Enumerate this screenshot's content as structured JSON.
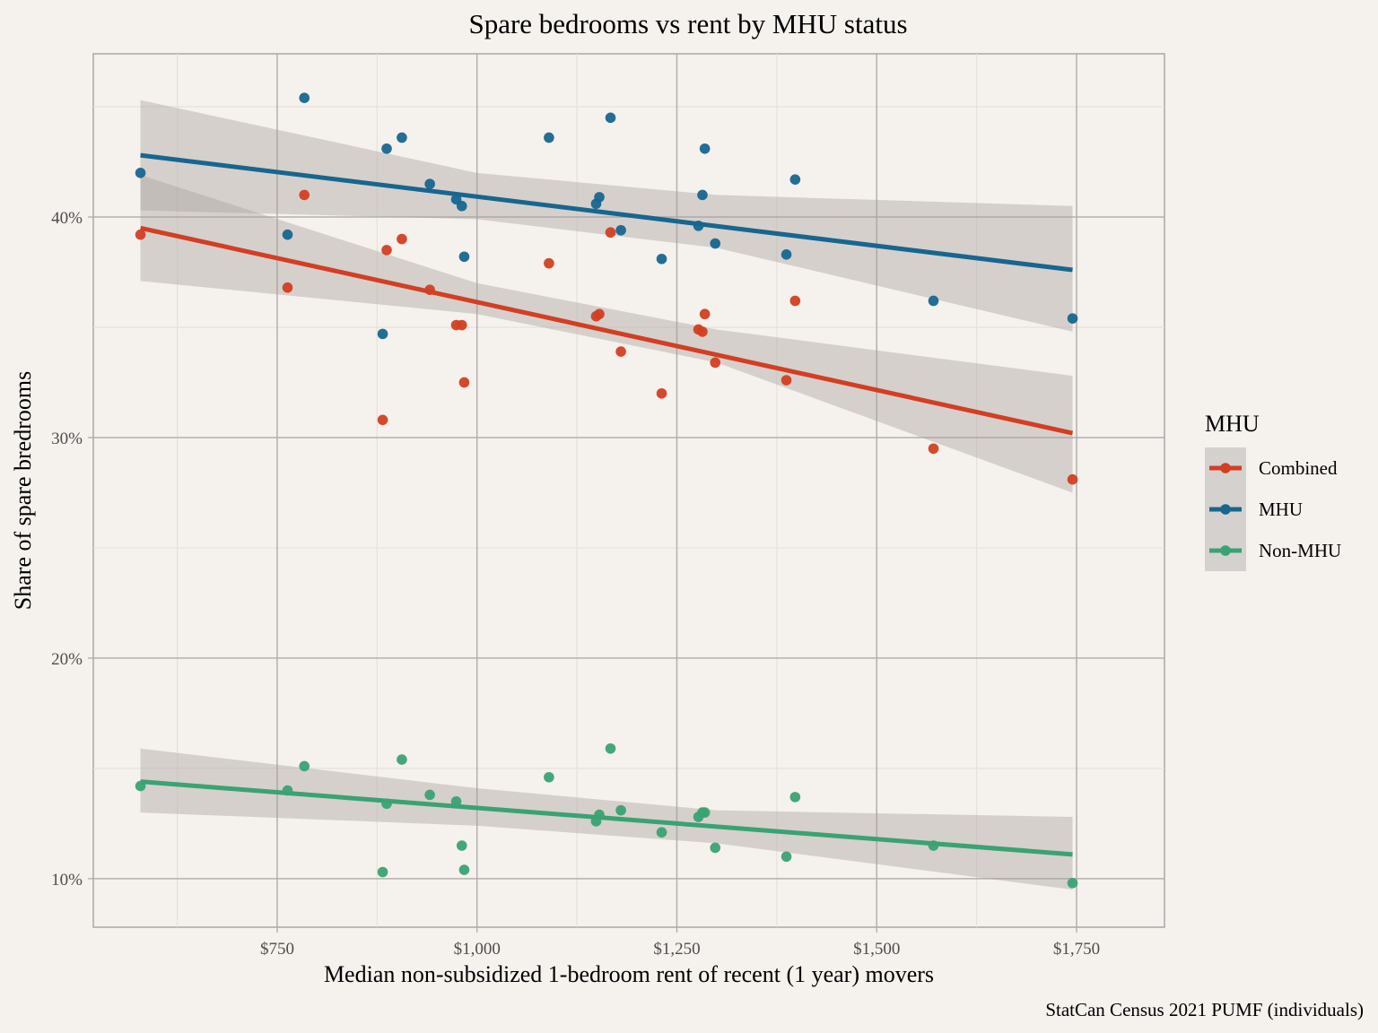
{
  "chart_data": {
    "type": "scatter",
    "title": "Spare bedrooms vs rent by MHU status",
    "xlabel": "Median non-subsidized 1-bedroom rent of recent (1 year) movers",
    "ylabel": "Share of spare bredrooms",
    "caption": "StatCan Census 2021 PUMF (individuals)",
    "xlim": [
      520,
      1860
    ],
    "ylim": [
      7.8,
      47.4
    ],
    "x_ticks": [
      {
        "value": 750,
        "label": "$750"
      },
      {
        "value": 1000,
        "label": "$1,000"
      },
      {
        "value": 1250,
        "label": "$1,250"
      },
      {
        "value": 1500,
        "label": "$1,500"
      },
      {
        "value": 1750,
        "label": "$1,750"
      }
    ],
    "y_ticks": [
      {
        "value": 10,
        "label": "10%"
      },
      {
        "value": 20,
        "label": "20%"
      },
      {
        "value": 30,
        "label": "30%"
      },
      {
        "value": 40,
        "label": "40%"
      }
    ],
    "x_minor": [
      625,
      875,
      1125,
      1375,
      1625
    ],
    "y_minor": [
      15,
      25,
      35,
      45
    ],
    "grid": true,
    "legend": {
      "title": "MHU",
      "position": "right"
    },
    "x": [
      579,
      763,
      784,
      882,
      887,
      906,
      941,
      974,
      981,
      984,
      1090,
      1149,
      1153,
      1167,
      1180,
      1231,
      1277,
      1282,
      1285,
      1298,
      1387,
      1398,
      1571,
      1745
    ],
    "series": [
      {
        "name": "Combined",
        "color": "#d23f22",
        "values": [
          39.2,
          36.8,
          41.0,
          30.8,
          38.5,
          39.0,
          36.7,
          35.1,
          35.1,
          32.5,
          37.9,
          35.5,
          35.6,
          39.3,
          33.9,
          32.0,
          34.9,
          34.8,
          35.6,
          33.4,
          32.6,
          36.2,
          29.5,
          28.1
        ],
        "fit": {
          "x": [
            579,
            1745
          ],
          "y": [
            39.5,
            30.2
          ]
        },
        "band": {
          "x": [
            579,
            1000,
            1300,
            1745
          ],
          "lower": [
            37.1,
            35.6,
            33.4,
            27.5
          ],
          "upper": [
            41.9,
            37.0,
            34.9,
            32.8
          ]
        }
      },
      {
        "name": "MHU",
        "color": "#17668f",
        "values": [
          42.0,
          39.2,
          45.4,
          34.7,
          43.1,
          43.6,
          41.5,
          40.8,
          40.5,
          38.2,
          43.6,
          40.6,
          40.9,
          44.5,
          39.4,
          38.1,
          39.6,
          41.0,
          43.1,
          38.8,
          38.3,
          41.7,
          36.2,
          35.4
        ],
        "fit": {
          "x": [
            579,
            1745
          ],
          "y": [
            42.8,
            37.6
          ]
        },
        "band": {
          "x": [
            579,
            1000,
            1300,
            1745
          ],
          "lower": [
            40.3,
            39.9,
            38.6,
            34.8
          ],
          "upper": [
            45.3,
            42.0,
            41.0,
            40.5
          ]
        }
      },
      {
        "name": "Non-MHU",
        "color": "#3aa273",
        "values": [
          14.2,
          14.0,
          15.1,
          10.3,
          13.4,
          15.4,
          13.8,
          13.5,
          11.5,
          10.4,
          14.6,
          12.6,
          12.9,
          15.9,
          13.1,
          12.1,
          12.8,
          13.0,
          13.0,
          11.4,
          11.0,
          13.7,
          11.5,
          9.8
        ],
        "fit": {
          "x": [
            579,
            1745
          ],
          "y": [
            14.4,
            11.1
          ]
        },
        "band": {
          "x": [
            579,
            1000,
            1300,
            1745
          ],
          "lower": [
            13.0,
            12.4,
            11.6,
            9.5
          ],
          "upper": [
            15.9,
            14.1,
            13.1,
            12.8
          ]
        }
      }
    ]
  }
}
